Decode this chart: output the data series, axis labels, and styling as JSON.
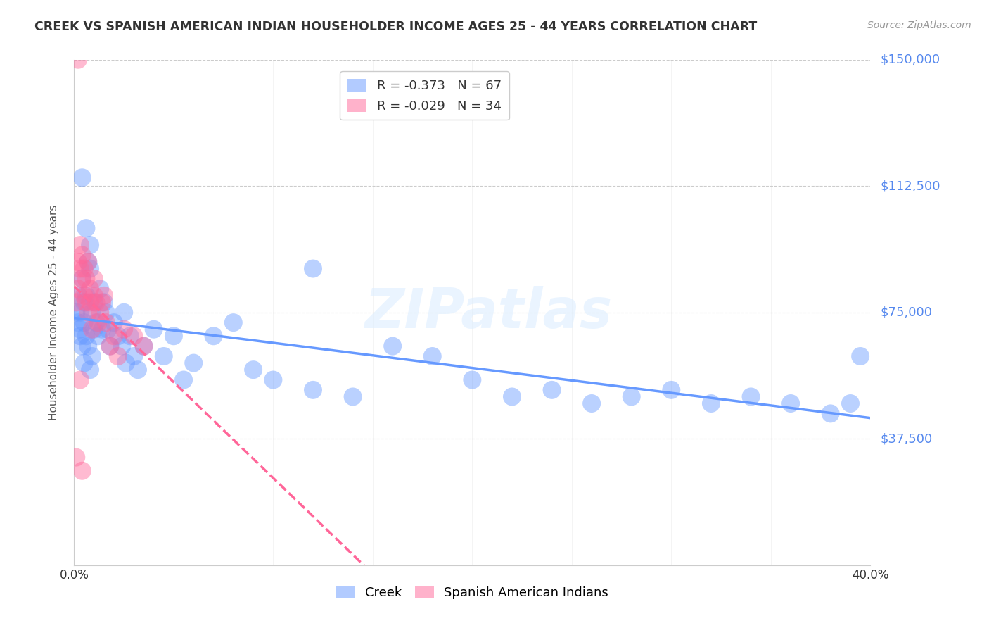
{
  "title": "CREEK VS SPANISH AMERICAN INDIAN HOUSEHOLDER INCOME AGES 25 - 44 YEARS CORRELATION CHART",
  "source": "Source: ZipAtlas.com",
  "ylabel": "Householder Income Ages 25 - 44 years",
  "xlim": [
    0.0,
    0.4
  ],
  "ylim": [
    0,
    150000
  ],
  "yticks": [
    0,
    37500,
    75000,
    112500,
    150000
  ],
  "ytick_labels": [
    "",
    "$37,500",
    "$75,000",
    "$112,500",
    "$150,000"
  ],
  "background_color": "#ffffff",
  "creek_color": "#6699ff",
  "spanish_color": "#ff6699",
  "legend_label_creek": "R = -0.373   N = 67",
  "legend_label_spanish": "R = -0.029   N = 34",
  "watermark": "ZIPatlas",
  "creek_scatter_x": [
    0.001,
    0.002,
    0.002,
    0.003,
    0.003,
    0.003,
    0.004,
    0.004,
    0.005,
    0.005,
    0.005,
    0.006,
    0.006,
    0.007,
    0.007,
    0.008,
    0.008,
    0.009,
    0.009,
    0.01,
    0.01,
    0.011,
    0.012,
    0.013,
    0.014,
    0.015,
    0.016,
    0.017,
    0.018,
    0.02,
    0.022,
    0.024,
    0.025,
    0.026,
    0.028,
    0.03,
    0.032,
    0.035,
    0.04,
    0.045,
    0.05,
    0.055,
    0.06,
    0.07,
    0.08,
    0.09,
    0.1,
    0.12,
    0.14,
    0.16,
    0.18,
    0.2,
    0.22,
    0.24,
    0.26,
    0.28,
    0.3,
    0.32,
    0.34,
    0.36,
    0.38,
    0.39,
    0.395,
    0.004,
    0.006,
    0.008,
    0.12
  ],
  "creek_scatter_y": [
    75000,
    72000,
    80000,
    70000,
    68000,
    75000,
    85000,
    65000,
    78000,
    72000,
    60000,
    80000,
    68000,
    90000,
    65000,
    88000,
    58000,
    75000,
    62000,
    78000,
    70000,
    72000,
    68000,
    82000,
    70000,
    78000,
    75000,
    70000,
    65000,
    72000,
    68000,
    65000,
    75000,
    60000,
    68000,
    62000,
    58000,
    65000,
    70000,
    62000,
    68000,
    55000,
    60000,
    68000,
    72000,
    58000,
    55000,
    52000,
    50000,
    65000,
    62000,
    55000,
    50000,
    52000,
    48000,
    50000,
    52000,
    48000,
    50000,
    48000,
    45000,
    48000,
    62000,
    115000,
    100000,
    95000,
    88000
  ],
  "spanish_scatter_x": [
    0.001,
    0.002,
    0.002,
    0.003,
    0.003,
    0.004,
    0.004,
    0.005,
    0.005,
    0.006,
    0.006,
    0.007,
    0.007,
    0.008,
    0.008,
    0.009,
    0.01,
    0.01,
    0.011,
    0.012,
    0.013,
    0.014,
    0.015,
    0.016,
    0.018,
    0.02,
    0.022,
    0.025,
    0.03,
    0.035,
    0.002,
    0.003,
    0.001,
    0.004
  ],
  "spanish_scatter_y": [
    78000,
    82000,
    90000,
    88000,
    95000,
    85000,
    92000,
    80000,
    88000,
    78000,
    85000,
    90000,
    75000,
    82000,
    78000,
    70000,
    80000,
    85000,
    78000,
    72000,
    75000,
    78000,
    80000,
    72000,
    65000,
    68000,
    62000,
    70000,
    68000,
    65000,
    150000,
    55000,
    32000,
    28000
  ]
}
